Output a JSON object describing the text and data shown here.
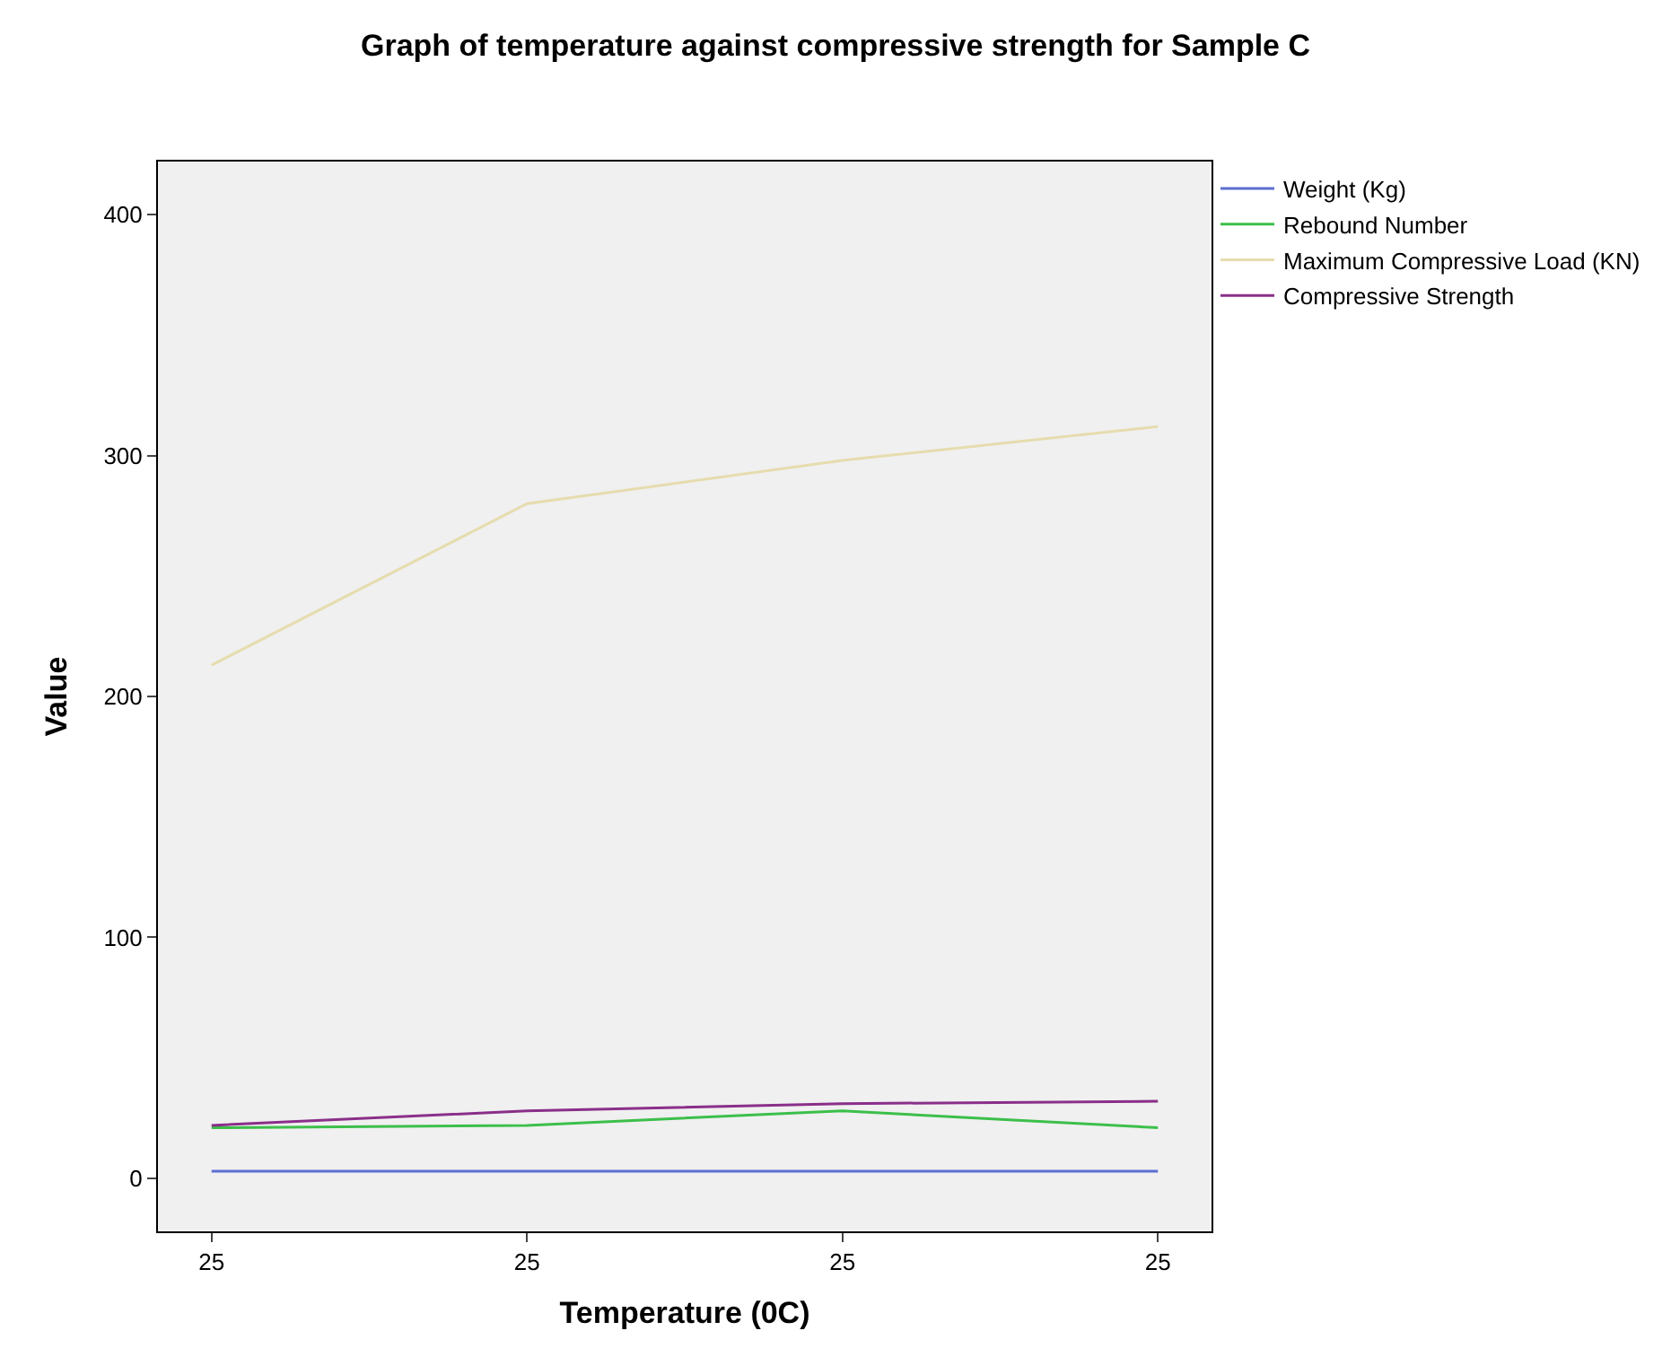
{
  "chart_data": {
    "type": "line",
    "title": "Graph of temperature against compressive strength for Sample C",
    "xlabel": "Temperature (0C)",
    "ylabel": "Value",
    "categories": [
      "25",
      "25",
      "25",
      "25"
    ],
    "series": [
      {
        "name": "Weight (Kg)",
        "color": "#5b6fd0",
        "values": [
          3,
          3,
          3,
          3
        ]
      },
      {
        "name": "Rebound Number",
        "color": "#3cbf4a",
        "values": [
          21,
          22,
          28,
          21
        ]
      },
      {
        "name": "Maximum Compressive Load (KN)",
        "color": "#e6dcae",
        "values": [
          213,
          280,
          298,
          312
        ]
      },
      {
        "name": "Compressive Strength",
        "color": "#8a2f8a",
        "values": [
          22,
          28,
          31,
          32
        ]
      }
    ],
    "ylim": [
      -22,
      422
    ],
    "yticks": [
      0,
      100,
      200,
      300,
      400
    ],
    "grid": false,
    "legend": "top right",
    "marker": "none",
    "line_style": "solid"
  }
}
